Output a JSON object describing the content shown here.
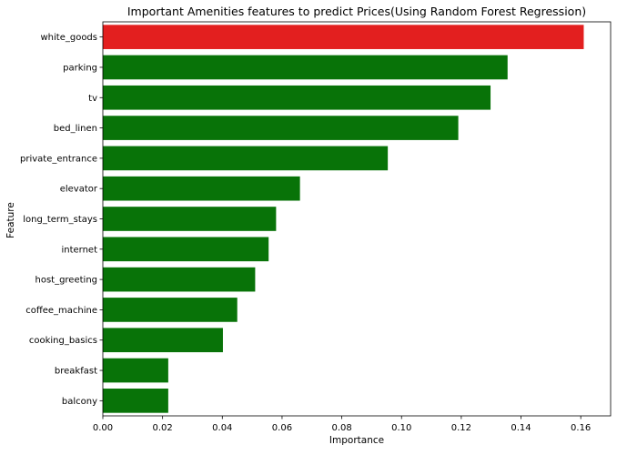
{
  "chart_data": {
    "type": "bar",
    "orientation": "horizontal",
    "title": "Important Amenities features to predict Prices(Using Random Forest Regression)",
    "xlabel": "Importance",
    "ylabel": "Feature",
    "xlim": [
      0,
      0.17
    ],
    "xticks": [
      "0.00",
      "0.02",
      "0.04",
      "0.06",
      "0.08",
      "0.10",
      "0.12",
      "0.14",
      "0.16"
    ],
    "categories": [
      "white_goods",
      "parking",
      "tv",
      "bed_linen",
      "private_entrance",
      "elevator",
      "long_term_stays",
      "internet",
      "host_greeting",
      "coffee_machine",
      "cooking_basics",
      "breakfast",
      "balcony"
    ],
    "values": [
      0.161,
      0.1355,
      0.1298,
      0.119,
      0.0954,
      0.066,
      0.058,
      0.0555,
      0.051,
      0.045,
      0.0402,
      0.0219,
      0.0219
    ],
    "colors": [
      "#e31f1f",
      "#087308",
      "#087308",
      "#087308",
      "#087308",
      "#087308",
      "#087308",
      "#087308",
      "#087308",
      "#087308",
      "#087308",
      "#087308",
      "#087308"
    ],
    "grid": false,
    "legend": "none"
  }
}
